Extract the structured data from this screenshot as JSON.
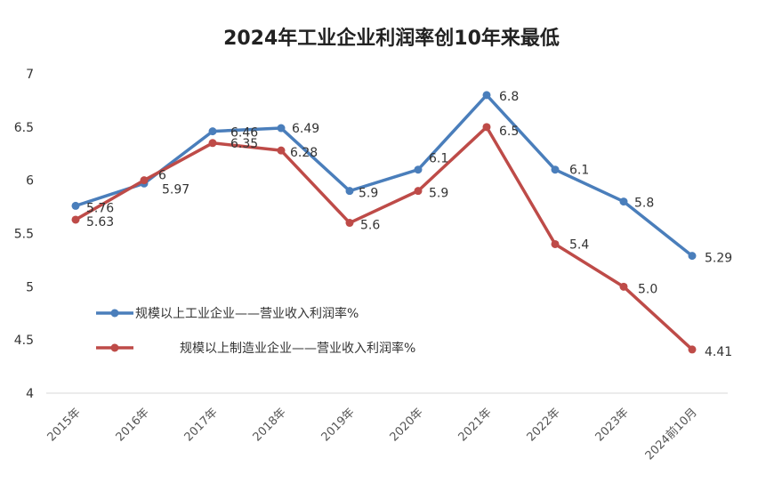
{
  "chart_data": {
    "type": "line",
    "title": "2024年工业企业利润率创10年来最低",
    "xlabel": "",
    "ylabel": "",
    "categories": [
      "2015年",
      "2016年",
      "2017年",
      "2018年",
      "2019年",
      "2020年",
      "2021年",
      "2022年",
      "2023年",
      "2024前10月"
    ],
    "ylim": [
      4,
      7
    ],
    "yticks": [
      "4",
      "4.5",
      "5",
      "5.5",
      "6",
      "6.5",
      "7"
    ],
    "grid": false,
    "legend_position": "left-center",
    "series": [
      {
        "name": "规模以上工业企业——营业收入利润率%",
        "color": "#4a7ebb",
        "values": [
          5.76,
          5.97,
          6.46,
          6.49,
          5.9,
          6.1,
          6.8,
          6.1,
          5.8,
          5.29
        ],
        "labels": [
          "5.76",
          "5.97",
          "6.46",
          "6.49",
          "5.9",
          "6.1",
          "6.8",
          "6.1",
          "5.8",
          "5.29"
        ]
      },
      {
        "name": "规模以上制造业企业——营业收入利润率%",
        "color": "#be4b48",
        "values": [
          5.63,
          6.0,
          6.35,
          6.28,
          5.6,
          5.9,
          6.5,
          5.4,
          5.0,
          4.41
        ],
        "labels": [
          "5.63",
          "6",
          "6.35",
          "6.28",
          "5.6",
          "5.9",
          "6.5",
          "5.4",
          "5.0",
          "4.41"
        ]
      }
    ]
  }
}
